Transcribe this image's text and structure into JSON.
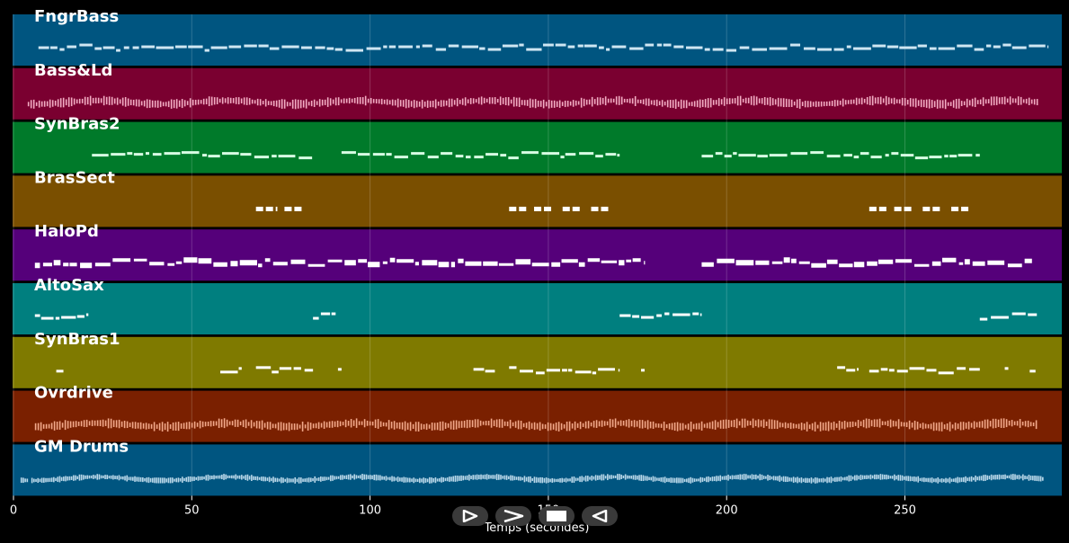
{
  "chart_data": {
    "type": "piano-roll",
    "xlabel": "Temps (secondes)",
    "xlim": [
      0,
      294
    ],
    "x_ticks": [
      0,
      50,
      100,
      150,
      200,
      250
    ],
    "tracks": [
      {
        "name": "FngrBass",
        "color": "#005580",
        "note_color": "#cfe6f2",
        "style": "dash",
        "activity": [
          [
            7,
            290
          ]
        ]
      },
      {
        "name": "Bass&Ld",
        "color": "#7a0030",
        "note_color": "#ffc0d4",
        "style": "wave",
        "activity": [
          [
            4,
            287
          ]
        ]
      },
      {
        "name": "SynBras2",
        "color": "#007a2a",
        "note_color": "#d8ffe4",
        "style": "dash",
        "activity": [
          [
            22,
            84
          ],
          [
            92,
            170
          ],
          [
            193,
            271
          ]
        ]
      },
      {
        "name": "BrasSect",
        "color": "#7a4f00",
        "note_color": "#ffffff",
        "style": "block",
        "activity": [
          [
            68,
            74
          ],
          [
            76,
            81
          ],
          [
            139,
            144
          ],
          [
            146,
            151
          ],
          [
            154,
            159
          ],
          [
            162,
            167
          ],
          [
            240,
            245
          ],
          [
            247,
            252
          ],
          [
            255,
            260
          ],
          [
            263,
            268
          ]
        ]
      },
      {
        "name": "HaloPd",
        "color": "#55007a",
        "note_color": "#ffffff",
        "style": "thick",
        "activity": [
          [
            6,
            177
          ],
          [
            193,
            286
          ]
        ]
      },
      {
        "name": "AltoSax",
        "color": "#007f7f",
        "note_color": "#ffffff",
        "style": "dash",
        "activity": [
          [
            6,
            21
          ],
          [
            84,
            91
          ],
          [
            170,
            193
          ],
          [
            271,
            287
          ]
        ]
      },
      {
        "name": "SynBras1",
        "color": "#7f7a00",
        "note_color": "#ffffff",
        "style": "dash",
        "activity": [
          [
            12,
            14
          ],
          [
            58,
            64
          ],
          [
            68,
            84
          ],
          [
            91,
            92
          ],
          [
            129,
            135
          ],
          [
            139,
            170
          ],
          [
            176,
            177
          ],
          [
            231,
            237
          ],
          [
            240,
            271
          ],
          [
            278,
            279
          ],
          [
            285,
            287
          ]
        ]
      },
      {
        "name": "Ovrdrive",
        "color": "#7a2000",
        "note_color": "#ffb89a",
        "style": "wave",
        "activity": [
          [
            6,
            287
          ]
        ]
      },
      {
        "name": "GM Drums",
        "color": "#005580",
        "note_color": "#d0e8f5",
        "style": "drums",
        "activity": [
          [
            2,
            4
          ],
          [
            5,
            289
          ]
        ]
      }
    ]
  },
  "controls": [
    {
      "name": "play-button",
      "icon": "play-icon"
    },
    {
      "name": "forward-button",
      "icon": "chevron-right-icon"
    },
    {
      "name": "stop-button",
      "icon": "stop-icon"
    },
    {
      "name": "back-button",
      "icon": "triangle-left-icon"
    }
  ]
}
